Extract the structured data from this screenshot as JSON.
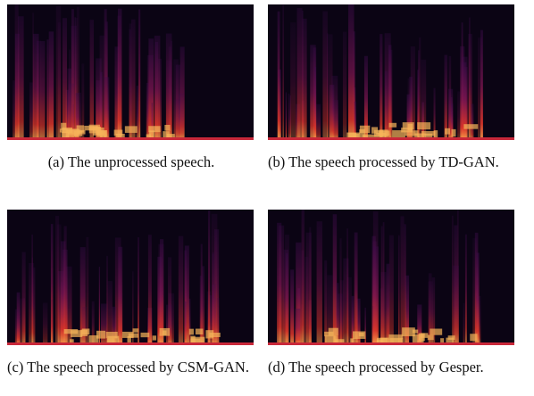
{
  "figures": [
    {
      "caption": "(a) The unprocessed speech."
    },
    {
      "caption": "(b) The speech processed by TD-GAN."
    },
    {
      "caption": "(c) The speech processed by CSM-GAN."
    },
    {
      "caption": "(d) The speech processed by Gesper."
    }
  ]
}
